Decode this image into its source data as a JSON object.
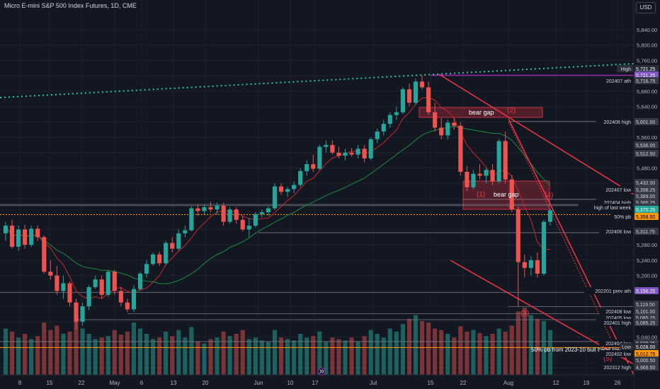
{
  "header": {
    "title": "Micro E-mini S&P 500 Index Futures, 1D, CME",
    "currency_button": "USD"
  },
  "colors": {
    "background": "#131722",
    "grid": "#1e222d",
    "bull": "#26a69a",
    "bear": "#ef5350",
    "bull_volume": "#1f6e68",
    "bear_volume": "#8d3a3c",
    "trend": "#f23645",
    "dotted_trend": "#2bc5a8",
    "ma_green": "#1b7a3a",
    "ma_red": "#c62828"
  },
  "chart_data": {
    "type": "candlestick",
    "x_axis_labels": [
      "8",
      "15",
      "22",
      "May",
      "6",
      "13",
      "20",
      "Jun",
      "10",
      "17",
      "Jul",
      "15",
      "22",
      "Aug",
      "12",
      "19",
      "26"
    ],
    "y_axis": {
      "ticks": [
        "5,840.00",
        "5,800.00",
        "5,760.00",
        "5,720.00",
        "5,680.00",
        "5,640.00",
        "5,600.00",
        "5,560.00",
        "5,520.00",
        "5,480.00",
        "5,440.00",
        "5,400.00",
        "5,360.00",
        "5,320.00",
        "5,280.00",
        "5,240.00",
        "5,200.00",
        "5,160.00",
        "5,120.00",
        "5,080.00",
        "5,040.00",
        "5,000.00",
        "4,960.00"
      ]
    },
    "price_badges": [
      {
        "label": "High",
        "value": "5,721.25",
        "style": "dark"
      },
      {
        "label": "",
        "value": "5,721.25",
        "style": "purple"
      },
      {
        "label": "202407 ath",
        "value": "5,716.75",
        "style": "gray"
      },
      {
        "label": "202408 high",
        "value": "5,601.00",
        "style": "gray"
      },
      {
        "label": "",
        "value": "5,536.00",
        "style": "gray"
      },
      {
        "label": "",
        "value": "5,512.50",
        "style": "gray"
      },
      {
        "label": "",
        "value": "5,432.00",
        "style": "gray"
      },
      {
        "label": "202407 low",
        "value": "5,398.25",
        "style": "gray"
      },
      {
        "label": "",
        "value": "5,389.00",
        "style": "gray"
      },
      {
        "label": "202404 high",
        "value": "5,385.25",
        "style": "gray"
      },
      {
        "label": "high of last week",
        "value": "5,382.00",
        "style": "gray"
      },
      {
        "label": "",
        "value": "5,370.25",
        "style": "teal"
      },
      {
        "label": "50% pb",
        "value": "5,358.50",
        "style": "orange"
      },
      {
        "label": "202406 low",
        "value": "5,311.75",
        "style": "gray"
      },
      {
        "label": "202201 prev ath",
        "value": "5,156.25",
        "style": "purple"
      },
      {
        "label": "",
        "value": "5,119.50",
        "style": "gray"
      },
      {
        "label": "202408 low",
        "value": "5,101.00",
        "style": "gray"
      },
      {
        "label": "202405 low",
        "value": "5,085.25",
        "style": "gray"
      },
      {
        "label": "202401 high",
        "value": "5,085.25",
        "style": "gray"
      },
      {
        "label": "202404 low",
        "value": "5,028.25",
        "style": "gray"
      },
      {
        "label": "Low",
        "value": "5,028.00",
        "style": "dark"
      },
      {
        "label": "202402 low",
        "value": "5,012.75",
        "style": "orange"
      },
      {
        "label": "",
        "value": "5,000.50",
        "style": "gray"
      },
      {
        "label": "202312 high",
        "value": "4,969.50",
        "style": "gray"
      }
    ],
    "annotations": [
      {
        "text": "bear gap"
      },
      {
        "text": "bear gap"
      },
      {
        "text": "(1)"
      },
      {
        "text": "(2)"
      },
      {
        "text": "(3)"
      },
      {
        "text": "(4)"
      },
      {
        "text": "(5)"
      },
      {
        "text": "50% pb from 2023-10 bull trend low to ath"
      }
    ],
    "candles": [
      {
        "o": 5310,
        "h": 5340,
        "l": 5290,
        "c": 5330
      },
      {
        "o": 5330,
        "h": 5345,
        "l": 5270,
        "c": 5275
      },
      {
        "o": 5275,
        "h": 5330,
        "l": 5265,
        "c": 5320
      },
      {
        "o": 5320,
        "h": 5332,
        "l": 5270,
        "c": 5280
      },
      {
        "o": 5280,
        "h": 5330,
        "l": 5275,
        "c": 5322
      },
      {
        "o": 5322,
        "h": 5330,
        "l": 5290,
        "c": 5300
      },
      {
        "o": 5300,
        "h": 5305,
        "l": 5205,
        "c": 5210
      },
      {
        "o": 5210,
        "h": 5240,
        "l": 5190,
        "c": 5200
      },
      {
        "o": 5200,
        "h": 5225,
        "l": 5150,
        "c": 5160
      },
      {
        "o": 5160,
        "h": 5200,
        "l": 5140,
        "c": 5180
      },
      {
        "o": 5180,
        "h": 5185,
        "l": 5120,
        "c": 5130
      },
      {
        "o": 5130,
        "h": 5140,
        "l": 5060,
        "c": 5080
      },
      {
        "o": 5080,
        "h": 5130,
        "l": 5070,
        "c": 5120
      },
      {
        "o": 5120,
        "h": 5175,
        "l": 5110,
        "c": 5170
      },
      {
        "o": 5170,
        "h": 5200,
        "l": 5165,
        "c": 5190
      },
      {
        "o": 5190,
        "h": 5200,
        "l": 5140,
        "c": 5150
      },
      {
        "o": 5150,
        "h": 5215,
        "l": 5145,
        "c": 5210
      },
      {
        "o": 5210,
        "h": 5215,
        "l": 5150,
        "c": 5160
      },
      {
        "o": 5160,
        "h": 5170,
        "l": 5120,
        "c": 5130
      },
      {
        "o": 5130,
        "h": 5140,
        "l": 5105,
        "c": 5112
      },
      {
        "o": 5112,
        "h": 5175,
        "l": 5105,
        "c": 5165
      },
      {
        "o": 5165,
        "h": 5210,
        "l": 5160,
        "c": 5205
      },
      {
        "o": 5205,
        "h": 5240,
        "l": 5195,
        "c": 5230
      },
      {
        "o": 5230,
        "h": 5260,
        "l": 5225,
        "c": 5255
      },
      {
        "o": 5255,
        "h": 5262,
        "l": 5225,
        "c": 5232
      },
      {
        "o": 5232,
        "h": 5290,
        "l": 5228,
        "c": 5285
      },
      {
        "o": 5285,
        "h": 5300,
        "l": 5260,
        "c": 5270
      },
      {
        "o": 5270,
        "h": 5320,
        "l": 5265,
        "c": 5310
      },
      {
        "o": 5310,
        "h": 5330,
        "l": 5300,
        "c": 5318
      },
      {
        "o": 5318,
        "h": 5380,
        "l": 5315,
        "c": 5375
      },
      {
        "o": 5375,
        "h": 5385,
        "l": 5355,
        "c": 5368
      },
      {
        "o": 5368,
        "h": 5385,
        "l": 5360,
        "c": 5378
      },
      {
        "o": 5378,
        "h": 5392,
        "l": 5365,
        "c": 5372
      },
      {
        "o": 5372,
        "h": 5390,
        "l": 5360,
        "c": 5382
      },
      {
        "o": 5382,
        "h": 5390,
        "l": 5330,
        "c": 5340
      },
      {
        "o": 5340,
        "h": 5378,
        "l": 5335,
        "c": 5372
      },
      {
        "o": 5372,
        "h": 5378,
        "l": 5335,
        "c": 5345
      },
      {
        "o": 5345,
        "h": 5355,
        "l": 5315,
        "c": 5320
      },
      {
        "o": 5320,
        "h": 5350,
        "l": 5300,
        "c": 5330
      },
      {
        "o": 5330,
        "h": 5365,
        "l": 5325,
        "c": 5360
      },
      {
        "o": 5360,
        "h": 5372,
        "l": 5352,
        "c": 5365
      },
      {
        "o": 5365,
        "h": 5380,
        "l": 5355,
        "c": 5375
      },
      {
        "o": 5375,
        "h": 5440,
        "l": 5370,
        "c": 5432
      },
      {
        "o": 5432,
        "h": 5440,
        "l": 5410,
        "c": 5418
      },
      {
        "o": 5418,
        "h": 5432,
        "l": 5405,
        "c": 5425
      },
      {
        "o": 5425,
        "h": 5445,
        "l": 5415,
        "c": 5436
      },
      {
        "o": 5436,
        "h": 5480,
        "l": 5430,
        "c": 5472
      },
      {
        "o": 5472,
        "h": 5500,
        "l": 5460,
        "c": 5490
      },
      {
        "o": 5490,
        "h": 5515,
        "l": 5470,
        "c": 5478
      },
      {
        "o": 5478,
        "h": 5540,
        "l": 5475,
        "c": 5535
      },
      {
        "o": 5535,
        "h": 5552,
        "l": 5520,
        "c": 5540
      },
      {
        "o": 5540,
        "h": 5552,
        "l": 5515,
        "c": 5520
      },
      {
        "o": 5520,
        "h": 5535,
        "l": 5505,
        "c": 5512
      },
      {
        "o": 5512,
        "h": 5530,
        "l": 5500,
        "c": 5520
      },
      {
        "o": 5520,
        "h": 5532,
        "l": 5510,
        "c": 5515
      },
      {
        "o": 5515,
        "h": 5540,
        "l": 5505,
        "c": 5530
      },
      {
        "o": 5530,
        "h": 5540,
        "l": 5495,
        "c": 5505
      },
      {
        "o": 5505,
        "h": 5560,
        "l": 5500,
        "c": 5555
      },
      {
        "o": 5555,
        "h": 5582,
        "l": 5545,
        "c": 5575
      },
      {
        "o": 5575,
        "h": 5605,
        "l": 5565,
        "c": 5595
      },
      {
        "o": 5595,
        "h": 5625,
        "l": 5585,
        "c": 5618
      },
      {
        "o": 5618,
        "h": 5640,
        "l": 5605,
        "c": 5625
      },
      {
        "o": 5625,
        "h": 5690,
        "l": 5620,
        "c": 5685
      },
      {
        "o": 5685,
        "h": 5700,
        "l": 5640,
        "c": 5650
      },
      {
        "o": 5650,
        "h": 5712,
        "l": 5645,
        "c": 5705
      },
      {
        "o": 5705,
        "h": 5721,
        "l": 5685,
        "c": 5690
      },
      {
        "o": 5690,
        "h": 5705,
        "l": 5618,
        "c": 5625
      },
      {
        "o": 5625,
        "h": 5650,
        "l": 5575,
        "c": 5585
      },
      {
        "o": 5585,
        "h": 5610,
        "l": 5555,
        "c": 5565
      },
      {
        "o": 5565,
        "h": 5605,
        "l": 5555,
        "c": 5598
      },
      {
        "o": 5598,
        "h": 5610,
        "l": 5580,
        "c": 5590
      },
      {
        "o": 5590,
        "h": 5600,
        "l": 5460,
        "c": 5470
      },
      {
        "o": 5470,
        "h": 5485,
        "l": 5420,
        "c": 5430
      },
      {
        "o": 5430,
        "h": 5475,
        "l": 5425,
        "c": 5465
      },
      {
        "o": 5465,
        "h": 5490,
        "l": 5450,
        "c": 5460
      },
      {
        "o": 5460,
        "h": 5480,
        "l": 5440,
        "c": 5475
      },
      {
        "o": 5475,
        "h": 5490,
        "l": 5435,
        "c": 5445
      },
      {
        "o": 5445,
        "h": 5555,
        "l": 5440,
        "c": 5550
      },
      {
        "o": 5550,
        "h": 5575,
        "l": 5440,
        "c": 5450
      },
      {
        "o": 5450,
        "h": 5462,
        "l": 5365,
        "c": 5372
      },
      {
        "o": 5372,
        "h": 5380,
        "l": 5120,
        "c": 5235
      },
      {
        "o": 5235,
        "h": 5255,
        "l": 5195,
        "c": 5220
      },
      {
        "o": 5220,
        "h": 5250,
        "l": 5200,
        "c": 5240
      },
      {
        "o": 5240,
        "h": 5260,
        "l": 5195,
        "c": 5205
      },
      {
        "o": 5205,
        "h": 5345,
        "l": 5200,
        "c": 5340
      },
      {
        "o": 5340,
        "h": 5375,
        "l": 5330,
        "c": 5370
      }
    ],
    "volume": [
      62,
      58,
      50,
      55,
      48,
      52,
      70,
      60,
      66,
      55,
      58,
      80,
      62,
      55,
      48,
      50,
      52,
      60,
      54,
      58,
      70,
      62,
      55,
      48,
      50,
      58,
      52,
      60,
      50,
      64,
      45,
      42,
      48,
      50,
      58,
      52,
      55,
      60,
      48,
      50,
      46,
      44,
      60,
      50,
      48,
      46,
      55,
      50,
      52,
      58,
      44,
      50,
      48,
      46,
      50,
      45,
      52,
      60,
      55,
      50,
      62,
      58,
      68,
      75,
      80,
      72,
      70,
      62,
      60,
      55,
      50,
      65,
      58,
      60,
      56,
      52,
      55,
      62,
      58,
      66,
      85,
      90,
      80,
      75,
      72,
      60
    ]
  }
}
